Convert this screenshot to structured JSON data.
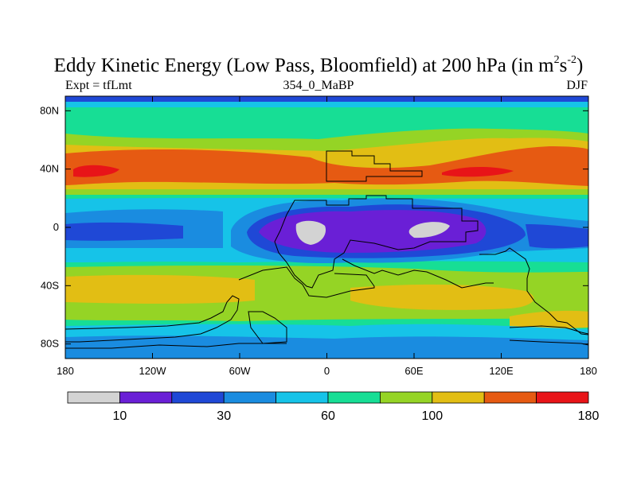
{
  "chart_data": {
    "type": "heatmap",
    "title": "Eddy Kinetic Energy (Low Pass, Bloomfield) at 200 hPa (in m",
    "title_unit_exp1": "2",
    "title_unit_s": "s",
    "title_unit_exp2": "-2",
    "title_close": ")",
    "left_label": "Expt = tfLmt",
    "center_label": "354_0_MaBP",
    "right_label": "DJF",
    "x_ticks": [
      {
        "value": -180,
        "label": "180"
      },
      {
        "value": -120,
        "label": "120W"
      },
      {
        "value": -60,
        "label": "60W"
      },
      {
        "value": 0,
        "label": "0"
      },
      {
        "value": 60,
        "label": "60E"
      },
      {
        "value": 120,
        "label": "120E"
      },
      {
        "value": 180,
        "label": "180"
      }
    ],
    "y_ticks": [
      {
        "value": 80,
        "label": "80N"
      },
      {
        "value": 40,
        "label": "40N"
      },
      {
        "value": 0,
        "label": "0"
      },
      {
        "value": -40,
        "label": "40S"
      },
      {
        "value": -80,
        "label": "80S"
      }
    ],
    "xlim": [
      -180,
      180
    ],
    "ylim": [
      -90,
      90
    ],
    "levels": [
      10,
      20,
      30,
      45,
      60,
      80,
      100,
      120,
      140,
      180
    ],
    "colorbar_colors": [
      "#d3d3d3",
      "#6a1fd6",
      "#1f48d6",
      "#1a8ce0",
      "#16c3e8",
      "#17de95",
      "#95d425",
      "#e2be14",
      "#e65a12",
      "#e81418"
    ],
    "colorbar_labels": [
      {
        "level_index": 0,
        "label": "10"
      },
      {
        "level_index": 2,
        "label": "30"
      },
      {
        "level_index": 4,
        "label": "60"
      },
      {
        "level_index": 6,
        "label": "100"
      },
      {
        "level_index": 9,
        "label": "180"
      }
    ],
    "features": [
      {
        "name": "NH jet Atlantic/Europe",
        "lon": -150,
        "lat": 37,
        "value": 170
      },
      {
        "name": "NH jet Asia",
        "lon": 95,
        "lat": 37,
        "value": 165
      },
      {
        "name": "equatorial minimum Africa",
        "lon": -10,
        "lat": -5,
        "value": 8
      },
      {
        "name": "equatorial minimum Indian Ocean",
        "lon": 60,
        "lat": -2,
        "value": 8
      },
      {
        "name": "SH storm track",
        "lon": 30,
        "lat": -57,
        "value": 120
      }
    ]
  }
}
